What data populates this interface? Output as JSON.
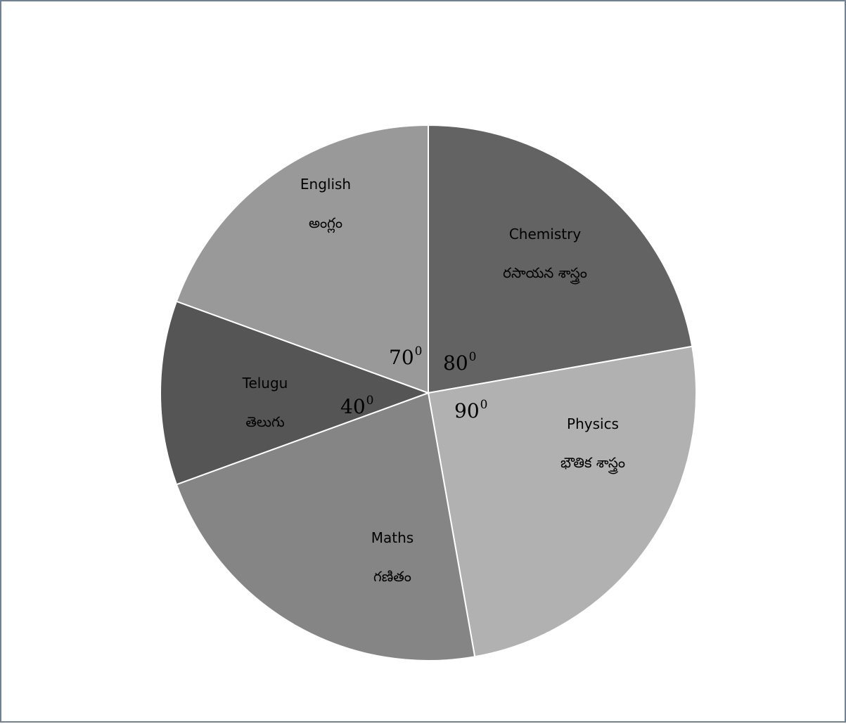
{
  "chart_data": {
    "type": "pie",
    "title": "",
    "slices": [
      {
        "label": "Chemistry",
        "label_telugu": "రసాయన శాస్త్రం",
        "degrees": 80,
        "angle_text": "80",
        "color": "#636363"
      },
      {
        "label": "Physics",
        "label_telugu": "భౌతిక శాస్త్రం",
        "degrees": 90,
        "angle_text": "90",
        "color": "#b1b1b1"
      },
      {
        "label": "Maths",
        "label_telugu": "గణితం",
        "angle_text": "",
        "degrees": 80,
        "color": "#858585"
      },
      {
        "label": "Telugu",
        "label_telugu": "తెలుగు",
        "degrees": 40,
        "angle_text": "40",
        "color": "#555555"
      },
      {
        "label": "English",
        "label_telugu": "అంగ్లం",
        "degrees": 70,
        "angle_text": "70",
        "color": "#999999"
      }
    ],
    "angle_unit_superscript": "0",
    "legend": "none"
  }
}
